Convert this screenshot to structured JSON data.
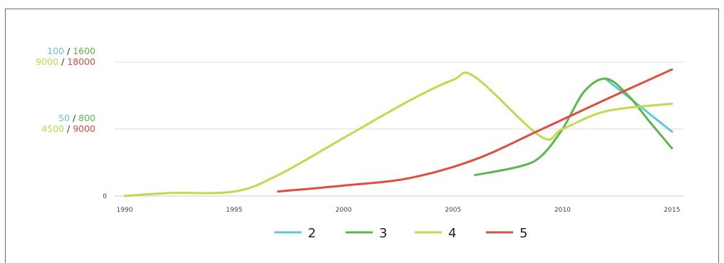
{
  "chart_data": {
    "type": "line",
    "title": "",
    "xlabel": "",
    "ylabel": "",
    "xlim": [
      1990,
      2015
    ],
    "x_ticks": [
      "1990",
      "1995",
      "2000",
      "2005",
      "2010",
      "2015"
    ],
    "grid": true,
    "legend_placement": "bottom-center",
    "y_axis_labels": [
      {
        "lines": [
          [
            {
              "text": "100",
              "series": "2"
            },
            {
              "text": " / "
            },
            {
              "text": "1600",
              "series": "3"
            }
          ],
          [
            {
              "text": "9000",
              "series": "4"
            },
            {
              "text": " / "
            },
            {
              "text": "18000",
              "series": "5"
            }
          ]
        ]
      },
      {
        "lines": [
          [
            {
              "text": "50",
              "series": "2"
            },
            {
              "text": " / "
            },
            {
              "text": "800",
              "series": "3"
            }
          ],
          [
            {
              "text": "4500",
              "series": "4"
            },
            {
              "text": " / "
            },
            {
              "text": "9000",
              "series": "5"
            }
          ]
        ]
      },
      {
        "lines": [
          [
            {
              "text": "0"
            }
          ]
        ]
      }
    ],
    "series": [
      {
        "name": "2",
        "color": "#5bc8dc",
        "ymax": 100,
        "points": [
          [
            2012,
            87
          ],
          [
            2015,
            48
          ]
        ]
      },
      {
        "name": "3",
        "color": "#5db748",
        "ymax": 1600,
        "points": [
          [
            2006,
            250
          ],
          [
            2008,
            350
          ],
          [
            2009,
            470
          ],
          [
            2010,
            800
          ],
          [
            2011,
            1250
          ],
          [
            2012,
            1400
          ],
          [
            2013,
            1200
          ],
          [
            2014,
            880
          ],
          [
            2015,
            570
          ]
        ]
      },
      {
        "name": "4",
        "color": "#c3d84a",
        "ymax": 9000,
        "points": [
          [
            1990,
            0
          ],
          [
            1992,
            200
          ],
          [
            1995,
            300
          ],
          [
            1997,
            1400
          ],
          [
            2000,
            3900
          ],
          [
            2003,
            6400
          ],
          [
            2005,
            7800
          ],
          [
            2006,
            8000
          ],
          [
            2009,
            4000
          ],
          [
            2010,
            4500
          ],
          [
            2012,
            5700
          ],
          [
            2015,
            6200
          ]
        ]
      },
      {
        "name": "5",
        "color": "#e34b3e",
        "ymax": 18000,
        "points": [
          [
            1997,
            600
          ],
          [
            2000,
            1400
          ],
          [
            2003,
            2400
          ],
          [
            2006,
            4900
          ],
          [
            2009,
            8900
          ],
          [
            2012,
            13000
          ],
          [
            2015,
            17000
          ]
        ]
      }
    ]
  },
  "colors": {
    "separator": "#555555",
    "grid": "#dddddd",
    "axis": "#cccccc",
    "tick_text": "#444444"
  }
}
